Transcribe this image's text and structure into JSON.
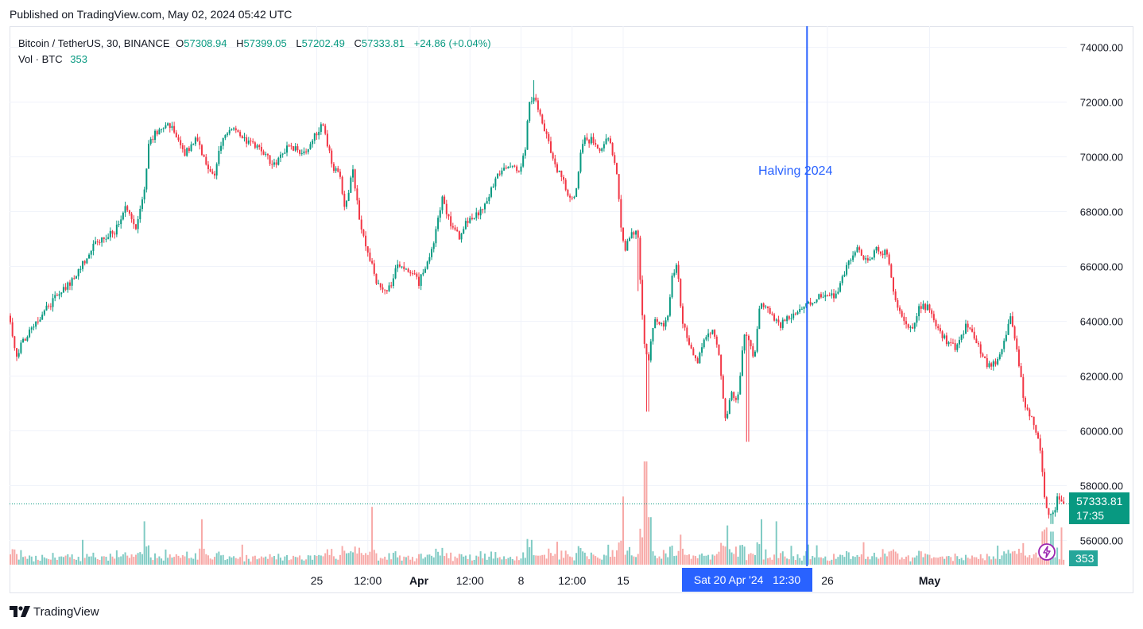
{
  "header": {
    "published": "Published on TradingView.com, May 02, 2024 05:42 UTC"
  },
  "legend": {
    "symbol": "Bitcoin / TetherUS, 30, BINANCE",
    "o_label": "O",
    "o_value": "57308.94",
    "h_label": "H",
    "h_value": "57399.05",
    "l_label": "L",
    "l_value": "57202.49",
    "c_label": "C",
    "c_value": "57333.81",
    "change": "+24.86 (+0.04%)",
    "vol_label": "Vol · BTC",
    "vol_value": "353"
  },
  "annotation": {
    "halving": "Halving 2024"
  },
  "price_axis": {
    "current_price": "57333.81",
    "countdown": "17:35",
    "current_volume": "353"
  },
  "crosshair": {
    "label": "Sat 20 Apr '24   12:30"
  },
  "footer": {
    "brand": "TradingView"
  },
  "colors": {
    "up": "#089981",
    "down": "#f23645",
    "vol_up": "#80cbc4",
    "vol_down": "#f7a9a7",
    "halving_line": "#2962ff",
    "grid": "#f0f3fa"
  },
  "chart_data": {
    "type": "candlestick",
    "title": "Bitcoin / TetherUS, 30, BINANCE",
    "y_axis": {
      "range": [
        55000,
        74800
      ],
      "ticks": [
        56000,
        58000,
        60000,
        62000,
        64000,
        66000,
        68000,
        70000,
        72000,
        74000
      ]
    },
    "x_axis": {
      "ticks": [
        {
          "label": "25",
          "bold": false,
          "t": 3.0
        },
        {
          "label": "12:00",
          "bold": false,
          "t": 3.5
        },
        {
          "label": "Apr",
          "bold": true,
          "t": 4.0
        },
        {
          "label": "12:00",
          "bold": false,
          "t": 4.5
        },
        {
          "label": "8",
          "bold": false,
          "t": 5.0
        },
        {
          "label": "12:00",
          "bold": false,
          "t": 5.5
        },
        {
          "label": "15",
          "bold": false,
          "t": 6.0
        },
        {
          "label": "26",
          "bold": false,
          "t": 8.0
        },
        {
          "label": "May",
          "bold": true,
          "t": 9.0
        }
      ]
    },
    "halving_t": 7.8,
    "last_price": 57333.81,
    "price_keypoints": [
      [
        0.0,
        64200
      ],
      [
        0.08,
        62800
      ],
      [
        0.25,
        63900
      ],
      [
        0.45,
        64800
      ],
      [
        0.65,
        65600
      ],
      [
        0.85,
        66800
      ],
      [
        1.05,
        67300
      ],
      [
        1.15,
        68300
      ],
      [
        1.25,
        67300
      ],
      [
        1.34,
        68900
      ],
      [
        1.38,
        70600
      ],
      [
        1.48,
        71000
      ],
      [
        1.6,
        71200
      ],
      [
        1.72,
        70100
      ],
      [
        1.85,
        70700
      ],
      [
        1.95,
        69600
      ],
      [
        2.02,
        69300
      ],
      [
        2.1,
        70800
      ],
      [
        2.2,
        71100
      ],
      [
        2.32,
        70600
      ],
      [
        2.45,
        70300
      ],
      [
        2.6,
        69700
      ],
      [
        2.75,
        70400
      ],
      [
        2.9,
        70100
      ],
      [
        3.02,
        70900
      ],
      [
        3.08,
        71200
      ],
      [
        3.17,
        69700
      ],
      [
        3.25,
        69200
      ],
      [
        3.3,
        68100
      ],
      [
        3.37,
        69600
      ],
      [
        3.45,
        67500
      ],
      [
        3.55,
        66200
      ],
      [
        3.6,
        65400
      ],
      [
        3.72,
        65100
      ],
      [
        3.82,
        66100
      ],
      [
        3.95,
        65800
      ],
      [
        4.02,
        65400
      ],
      [
        4.1,
        66100
      ],
      [
        4.18,
        67100
      ],
      [
        4.25,
        68600
      ],
      [
        4.32,
        67600
      ],
      [
        4.42,
        67100
      ],
      [
        4.5,
        67700
      ],
      [
        4.6,
        67900
      ],
      [
        4.68,
        68400
      ],
      [
        4.8,
        69400
      ],
      [
        4.9,
        69600
      ],
      [
        5.0,
        69500
      ],
      [
        5.06,
        70100
      ],
      [
        5.1,
        72000
      ],
      [
        5.15,
        72300
      ],
      [
        5.2,
        71700
      ],
      [
        5.28,
        70600
      ],
      [
        5.38,
        69500
      ],
      [
        5.48,
        68700
      ],
      [
        5.55,
        68400
      ],
      [
        5.62,
        70600
      ],
      [
        5.72,
        70600
      ],
      [
        5.8,
        70100
      ],
      [
        5.88,
        70800
      ],
      [
        5.95,
        69600
      ],
      [
        6.0,
        67500
      ],
      [
        6.04,
        66600
      ],
      [
        6.1,
        67200
      ],
      [
        6.16,
        67400
      ],
      [
        6.22,
        63400
      ],
      [
        6.27,
        62500
      ],
      [
        6.32,
        64000
      ],
      [
        6.4,
        63800
      ],
      [
        6.46,
        64100
      ],
      [
        6.5,
        65600
      ],
      [
        6.55,
        66000
      ],
      [
        6.6,
        64000
      ],
      [
        6.68,
        63100
      ],
      [
        6.75,
        62500
      ],
      [
        6.82,
        63400
      ],
      [
        6.9,
        63600
      ],
      [
        6.96,
        62700
      ],
      [
        7.02,
        60400
      ],
      [
        7.08,
        61300
      ],
      [
        7.15,
        61200
      ],
      [
        7.2,
        63600
      ],
      [
        7.26,
        63300
      ],
      [
        7.3,
        62500
      ],
      [
        7.36,
        64700
      ],
      [
        7.45,
        64300
      ],
      [
        7.55,
        63800
      ],
      [
        7.65,
        64200
      ],
      [
        7.8,
        64500
      ],
      [
        7.9,
        64800
      ],
      [
        8.0,
        65000
      ],
      [
        8.1,
        64900
      ],
      [
        8.2,
        65900
      ],
      [
        8.3,
        66700
      ],
      [
        8.4,
        66200
      ],
      [
        8.5,
        66600
      ],
      [
        8.6,
        66500
      ],
      [
        8.68,
        64800
      ],
      [
        8.75,
        64100
      ],
      [
        8.85,
        63600
      ],
      [
        8.92,
        64600
      ],
      [
        9.0,
        64500
      ],
      [
        9.08,
        63900
      ],
      [
        9.18,
        63300
      ],
      [
        9.28,
        63000
      ],
      [
        9.38,
        63900
      ],
      [
        9.48,
        63300
      ],
      [
        9.58,
        62400
      ],
      [
        9.68,
        62500
      ],
      [
        9.75,
        63200
      ],
      [
        9.82,
        64200
      ],
      [
        9.88,
        62800
      ],
      [
        9.95,
        61000
      ],
      [
        10.02,
        60400
      ],
      [
        10.1,
        59500
      ],
      [
        10.15,
        57300
      ],
      [
        10.22,
        56800
      ],
      [
        10.28,
        57600
      ],
      [
        10.33,
        57333.81
      ]
    ],
    "wick_extremes": [
      {
        "t": 6.24,
        "low": 60700
      },
      {
        "t": 7.22,
        "low": 59600
      },
      {
        "t": 6.15,
        "low": 65100
      },
      {
        "t": 5.12,
        "high": 72800
      },
      {
        "t": 10.2,
        "low": 56600
      }
    ],
    "volume_spikes": [
      {
        "t": 1.32,
        "v": 2100
      },
      {
        "t": 1.88,
        "v": 2200
      },
      {
        "t": 3.55,
        "v": 2800
      },
      {
        "t": 5.1,
        "v": 1200
      },
      {
        "t": 6.0,
        "v": 3300
      },
      {
        "t": 6.22,
        "v": 5000
      },
      {
        "t": 6.26,
        "v": 2300
      },
      {
        "t": 7.02,
        "v": 1900
      },
      {
        "t": 7.35,
        "v": 2200
      },
      {
        "t": 7.5,
        "v": 2100
      },
      {
        "t": 10.15,
        "v": 1800
      },
      {
        "t": 10.2,
        "v": 1600
      },
      {
        "t": 10.3,
        "v": 1800
      }
    ]
  }
}
